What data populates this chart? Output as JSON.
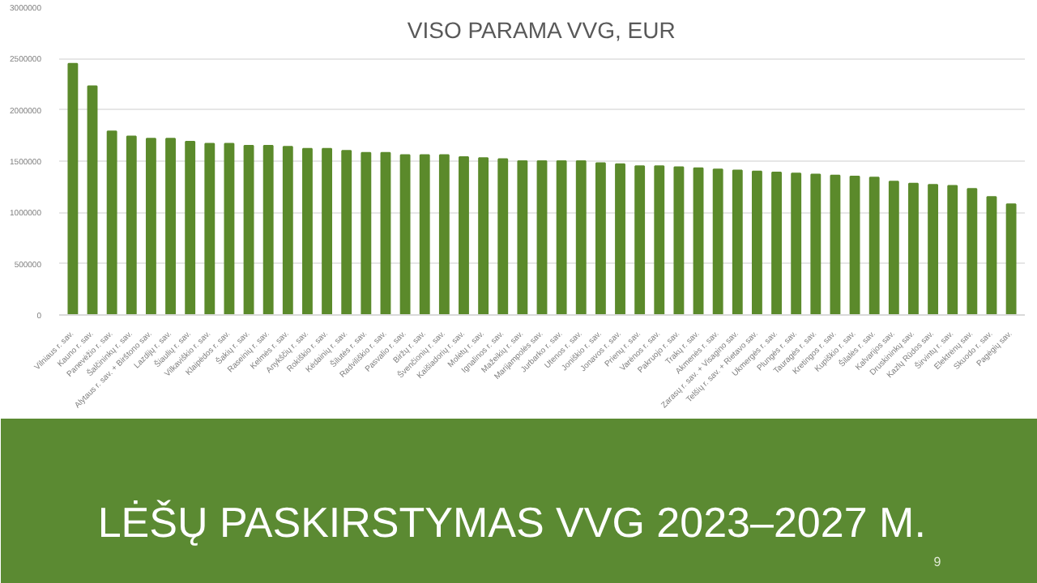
{
  "chart_data": {
    "type": "bar",
    "title": "VISO PARAMA VVG, EUR",
    "subtitle": "LĖŠŲ PASKIRSTYMAS VVG 2023–2027 M.",
    "annotations": [
      "9"
    ],
    "categories": [
      "Vilniaus r. sav.",
      "Kauno r. sav.",
      "Panevėžio r. sav.",
      "Šalčininkų r. sav.",
      "Alytaus r. sav. + Birštono sav.",
      "Lazdijų r. sav.",
      "Šiaulių r. sav.",
      "Vilkaviškio r. sav.",
      "Klaipėdos r. sav.",
      "Šakių r. sav.",
      "Raseinių r. sav.",
      "Kelmės r. sav.",
      "Anykščių r. sav.",
      "Rokiškio r. sav.",
      "Kėdainių r. sav.",
      "Šilutės r. sav.",
      "Radviliškio r. sav.",
      "Pasvalio r. sav.",
      "Biržų r. sav.",
      "Švenčionių r. sav.",
      "Kaišiadorių r. sav.",
      "Molėtų r. sav.",
      "Ignalinos r. sav.",
      "Mažeikių r. sav.",
      "Marijampolės sav.",
      "Jurbarko r. sav.",
      "Utenos r. sav.",
      "Joniškio r. sav.",
      "Jonavos r. sav.",
      "Prienų r. sav.",
      "Varėnos r. sav.",
      "Pakruojo r. sav.",
      "Trakų r. sav.",
      "Akmenės r. sav.",
      "Zarasų r. sav. + Visagino sav.",
      "Telšių r. sav. + Rietavo sav.",
      "Ukmergės r. sav.",
      "Plungės r. sav.",
      "Tauragės r. sav.",
      "Kretingos r. sav.",
      "Kupiškio r. sav.",
      "Šilalės r. sav.",
      "Kalvarijos sav.",
      "Druskininkų sav.",
      "Kazlų Rūdos sav.",
      "Širvintų r. sav.",
      "Elektrėnų sav.",
      "Skuodo r. sav.",
      "Pagėgių sav."
    ],
    "values": [
      2450000,
      2230000,
      1790000,
      1740000,
      1720000,
      1720000,
      1690000,
      1670000,
      1670000,
      1650000,
      1650000,
      1640000,
      1620000,
      1620000,
      1600000,
      1580000,
      1580000,
      1560000,
      1560000,
      1560000,
      1540000,
      1530000,
      1520000,
      1500000,
      1500000,
      1500000,
      1500000,
      1480000,
      1470000,
      1450000,
      1450000,
      1440000,
      1430000,
      1420000,
      1410000,
      1400000,
      1390000,
      1380000,
      1370000,
      1360000,
      1350000,
      1340000,
      1300000,
      1280000,
      1270000,
      1260000,
      1230000,
      1150000,
      1080000
    ],
    "color": "#5b8a2b",
    "ylim": [
      0,
      3000000
    ],
    "yticks": [
      0,
      500000,
      1000000,
      1500000,
      2000000,
      2500000,
      3000000
    ],
    "grid": "y"
  }
}
